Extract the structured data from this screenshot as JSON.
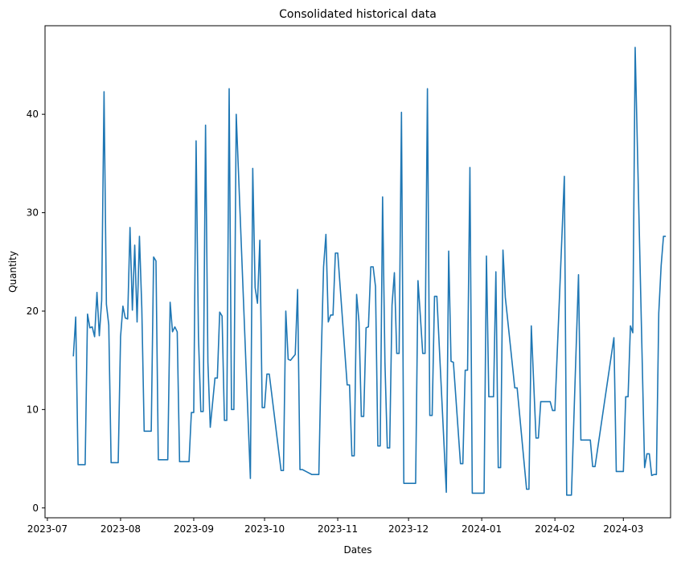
{
  "chart_data": {
    "type": "line",
    "title": "Consolidated historical data",
    "xlabel": "Dates",
    "ylabel": "Quantity",
    "x_axis_type": "date",
    "xlim": [
      "2023-06-30",
      "2024-03-21"
    ],
    "ylim": [
      -1,
      49
    ],
    "grid": false,
    "legend": "none",
    "line_color": "#1f77b4",
    "x_ticks": [
      {
        "value": "2023-07-01",
        "label": "2023-07"
      },
      {
        "value": "2023-08-01",
        "label": "2023-08"
      },
      {
        "value": "2023-09-01",
        "label": "2023-09"
      },
      {
        "value": "2023-10-01",
        "label": "2023-10"
      },
      {
        "value": "2023-11-01",
        "label": "2023-11"
      },
      {
        "value": "2023-12-01",
        "label": "2023-12"
      },
      {
        "value": "2024-01-01",
        "label": "2024-01"
      },
      {
        "value": "2024-02-01",
        "label": "2024-02"
      },
      {
        "value": "2024-03-01",
        "label": "2024-03"
      }
    ],
    "y_ticks": [
      0,
      10,
      20,
      30,
      40
    ],
    "series": [
      {
        "x": [
          "2023-07-12",
          "2023-07-13",
          "2023-07-14",
          "2023-07-17",
          "2023-07-18",
          "2023-07-19",
          "2023-07-20",
          "2023-07-21",
          "2023-07-22",
          "2023-07-23",
          "2023-07-24",
          "2023-07-25",
          "2023-07-26",
          "2023-07-27",
          "2023-07-28",
          "2023-07-31",
          "2023-08-01",
          "2023-08-02",
          "2023-08-03",
          "2023-08-04",
          "2023-08-05",
          "2023-08-06",
          "2023-08-07",
          "2023-08-08",
          "2023-08-09",
          "2023-08-10",
          "2023-08-11",
          "2023-08-14",
          "2023-08-15",
          "2023-08-16",
          "2023-08-17",
          "2023-08-21",
          "2023-08-22",
          "2023-08-23",
          "2023-08-24",
          "2023-08-25",
          "2023-08-26",
          "2023-08-30",
          "2023-08-31",
          "2023-09-01",
          "2023-09-02",
          "2023-09-03",
          "2023-09-04",
          "2023-09-05",
          "2023-09-06",
          "2023-09-07",
          "2023-09-08",
          "2023-09-10",
          "2023-09-11",
          "2023-09-12",
          "2023-09-13",
          "2023-09-14",
          "2023-09-15",
          "2023-09-16",
          "2023-09-17",
          "2023-09-18",
          "2023-09-19",
          "2023-09-25",
          "2023-09-26",
          "2023-09-27",
          "2023-09-28",
          "2023-09-29",
          "2023-09-30",
          "2023-10-01",
          "2023-10-02",
          "2023-10-03",
          "2023-10-08",
          "2023-10-09",
          "2023-10-10",
          "2023-10-11",
          "2023-10-12",
          "2023-10-14",
          "2023-10-15",
          "2023-10-16",
          "2023-10-17",
          "2023-10-21",
          "2023-10-24",
          "2023-10-25",
          "2023-10-26",
          "2023-10-27",
          "2023-10-28",
          "2023-10-29",
          "2023-10-30",
          "2023-10-31",
          "2023-11-01",
          "2023-11-05",
          "2023-11-06",
          "2023-11-07",
          "2023-11-08",
          "2023-11-09",
          "2023-11-10",
          "2023-11-11",
          "2023-11-12",
          "2023-11-13",
          "2023-11-14",
          "2023-11-15",
          "2023-11-16",
          "2023-11-17",
          "2023-11-18",
          "2023-11-19",
          "2023-11-20",
          "2023-11-21",
          "2023-11-22",
          "2023-11-23",
          "2023-11-24",
          "2023-11-25",
          "2023-11-26",
          "2023-11-27",
          "2023-11-28",
          "2023-11-29",
          "2023-12-04",
          "2023-12-05",
          "2023-12-06",
          "2023-12-07",
          "2023-12-08",
          "2023-12-09",
          "2023-12-10",
          "2023-12-11",
          "2023-12-12",
          "2023-12-13",
          "2023-12-17",
          "2023-12-18",
          "2023-12-19",
          "2023-12-20",
          "2023-12-23",
          "2023-12-24",
          "2023-12-25",
          "2023-12-26",
          "2023-12-27",
          "2023-12-28",
          "2024-01-01",
          "2024-01-02",
          "2024-01-03",
          "2024-01-04",
          "2024-01-05",
          "2024-01-06",
          "2024-01-07",
          "2024-01-08",
          "2024-01-09",
          "2024-01-10",
          "2024-01-11",
          "2024-01-15",
          "2024-01-16",
          "2024-01-20",
          "2024-01-21",
          "2024-01-22",
          "2024-01-24",
          "2024-01-25",
          "2024-01-26",
          "2024-01-30",
          "2024-01-31",
          "2024-02-01",
          "2024-02-05",
          "2024-02-06",
          "2024-02-07",
          "2024-02-08",
          "2024-02-11",
          "2024-02-12",
          "2024-02-16",
          "2024-02-17",
          "2024-02-18",
          "2024-02-26",
          "2024-02-27",
          "2024-02-28",
          "2024-02-29",
          "2024-03-01",
          "2024-03-02",
          "2024-03-03",
          "2024-03-04",
          "2024-03-05",
          "2024-03-06",
          "2024-03-10",
          "2024-03-11",
          "2024-03-12",
          "2024-03-13"
        ],
        "y": [
          15.4,
          19.4,
          4.4,
          4.4,
          19.7,
          18.3,
          18.4,
          17.4,
          21.9,
          17.5,
          21.1,
          42.3,
          20.7,
          18.6,
          4.6,
          4.6,
          17.4,
          20.5,
          19.3,
          19.2,
          28.5,
          20.1,
          26.7,
          18.9,
          27.6,
          20.3,
          7.8,
          7.8,
          25.5,
          25.1,
          4.9,
          4.9,
          20.9,
          17.9,
          18.4,
          17.9,
          4.7,
          4.7,
          9.7,
          9.7,
          37.3,
          17.4,
          9.8,
          9.8,
          38.9,
          14.8,
          8.2,
          13.2,
          13.2,
          19.9,
          19.5,
          8.9,
          8.9,
          42.6,
          10.0,
          10.0,
          40.0,
          3.0,
          34.5,
          22.4,
          20.8,
          27.2,
          10.2,
          10.2,
          13.6,
          13.6,
          3.8,
          3.8,
          20.0,
          15.1,
          15.0,
          15.6,
          22.2,
          3.9,
          3.9,
          3.4,
          3.4,
          15.2,
          24.5,
          27.8,
          18.9,
          19.6,
          19.6,
          25.9,
          25.9,
          12.5,
          12.5,
          5.3,
          5.3,
          21.7,
          18.9,
          9.3,
          9.3,
          18.3,
          18.4,
          24.5,
          24.5,
          22.5,
          6.3,
          6.3,
          31.6,
          14.8,
          6.1,
          6.1,
          20.6,
          23.9,
          15.7,
          15.7,
          40.2,
          2.5,
          2.5,
          23.1,
          19.5,
          15.7,
          15.7,
          42.6,
          9.4,
          9.4,
          21.5,
          21.5,
          1.6,
          26.1,
          14.9,
          14.8,
          4.5,
          4.5,
          14.0,
          14.0,
          34.6,
          1.5,
          1.5,
          1.5,
          25.6,
          11.3,
          11.3,
          11.3,
          24.0,
          4.1,
          4.1,
          26.2,
          21.4,
          12.2,
          12.2,
          1.9,
          1.9,
          18.5,
          7.1,
          7.1,
          10.8,
          10.8,
          9.9,
          9.9,
          33.7,
          1.3,
          1.3,
          1.3,
          23.7,
          6.9,
          6.9,
          4.2,
          4.2,
          17.3,
          3.7,
          3.7,
          3.7,
          3.7,
          11.3,
          11.3,
          18.5,
          17.8,
          46.8,
          4.1,
          5.5,
          5.5,
          3.3
        ]
      }
    ],
    "tail": {
      "x": [
        "2024-03-14",
        "2024-03-15",
        "2024-03-16",
        "2024-03-17",
        "2024-03-18",
        "2024-03-19"
      ],
      "y": [
        3.4,
        3.4,
        19.8,
        24.6,
        27.6,
        27.6
      ]
    }
  }
}
